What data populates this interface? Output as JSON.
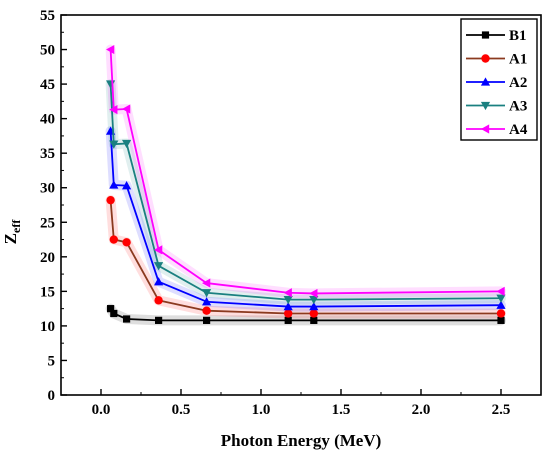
{
  "chart_data": {
    "type": "line",
    "xlabel": "Photon Energy (MeV)",
    "ylabel": "Z",
    "ylabel_sub": "eff",
    "xlim": [
      -0.25,
      2.75
    ],
    "ylim": [
      0,
      55
    ],
    "x_ticks": [
      0.0,
      0.5,
      1.0,
      1.5,
      2.0,
      2.5
    ],
    "x_tick_labels": [
      "0.0",
      "0.5",
      "1.0",
      "1.5",
      "2.0",
      "2.5"
    ],
    "y_ticks": [
      0,
      5,
      10,
      15,
      20,
      25,
      30,
      35,
      40,
      45,
      50,
      55
    ],
    "y_tick_labels": [
      "0",
      "5",
      "10",
      "15",
      "20",
      "25",
      "30",
      "35",
      "40",
      "45",
      "50",
      "55"
    ],
    "grid": false,
    "legend_position": "top-right",
    "series": [
      {
        "name": "B1",
        "color": "#000000",
        "marker": "square",
        "x": [
          0.06,
          0.08,
          0.16,
          0.36,
          0.66,
          1.17,
          1.33,
          2.5
        ],
        "y": [
          12.5,
          11.8,
          11.0,
          10.8,
          10.8,
          10.8,
          10.8,
          10.8
        ]
      },
      {
        "name": "A1",
        "color": "#ff0000",
        "line_color": "#8b3a1f",
        "marker": "circle",
        "x": [
          0.06,
          0.08,
          0.16,
          0.36,
          0.66,
          1.17,
          1.33,
          2.5
        ],
        "y": [
          28.2,
          22.5,
          22.1,
          13.7,
          12.2,
          11.8,
          11.8,
          11.8
        ]
      },
      {
        "name": "A2",
        "color": "#0000ff",
        "marker": "triangle-up",
        "x": [
          0.06,
          0.08,
          0.16,
          0.36,
          0.66,
          1.17,
          1.33,
          2.5
        ],
        "y": [
          38.2,
          30.4,
          30.3,
          16.4,
          13.5,
          12.8,
          12.8,
          13.0
        ]
      },
      {
        "name": "A3",
        "color": "#1a8080",
        "marker": "triangle-down",
        "x": [
          0.06,
          0.08,
          0.16,
          0.36,
          0.66,
          1.17,
          1.33,
          2.5
        ],
        "y": [
          45.0,
          36.3,
          36.4,
          18.7,
          14.8,
          13.8,
          13.8,
          14.0
        ]
      },
      {
        "name": "A4",
        "color": "#ff00ff",
        "marker": "triangle-left",
        "x": [
          0.06,
          0.08,
          0.16,
          0.36,
          0.66,
          1.17,
          1.33,
          2.5
        ],
        "y": [
          50.0,
          41.3,
          41.4,
          21.0,
          16.2,
          14.8,
          14.7,
          15.0
        ]
      }
    ]
  }
}
